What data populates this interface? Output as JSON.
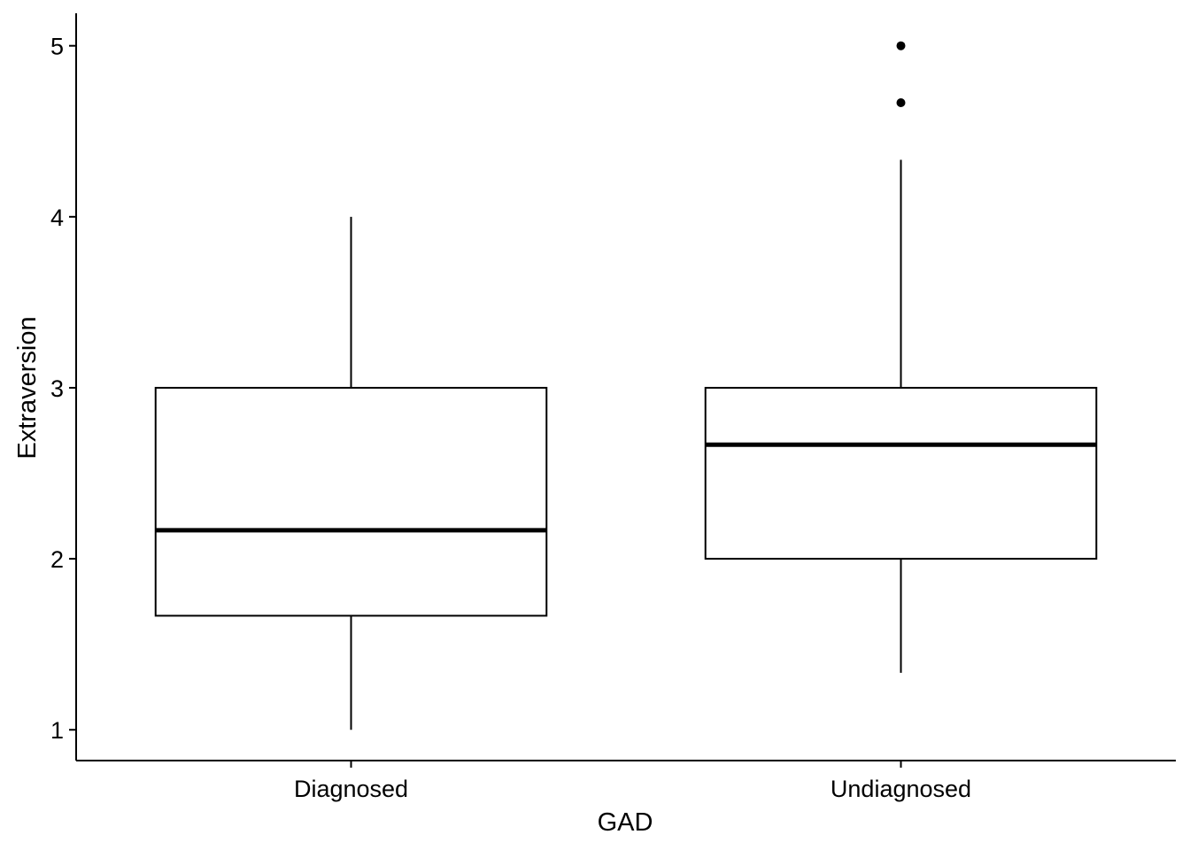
{
  "chart_data": {
    "type": "boxplot",
    "xlabel": "GAD",
    "ylabel": "Extraversion",
    "categories": [
      "Diagnosed",
      "Undiagnosed"
    ],
    "boxes": [
      {
        "name": "Diagnosed",
        "whisker_low": 1.0,
        "q1": 1.667,
        "median": 2.167,
        "q3": 3.0,
        "whisker_high": 4.0,
        "outliers": []
      },
      {
        "name": "Undiagnosed",
        "whisker_low": 1.333,
        "q1": 2.0,
        "median": 2.667,
        "q3": 3.0,
        "whisker_high": 4.333,
        "outliers": [
          4.667,
          5.0
        ]
      }
    ],
    "yticks": [
      1,
      2,
      3,
      4,
      5
    ],
    "ytick_labels": [
      "1",
      "2",
      "3",
      "4",
      "5"
    ],
    "ylim": [
      0.82,
      5.19
    ],
    "grid": false,
    "legend": "none"
  }
}
